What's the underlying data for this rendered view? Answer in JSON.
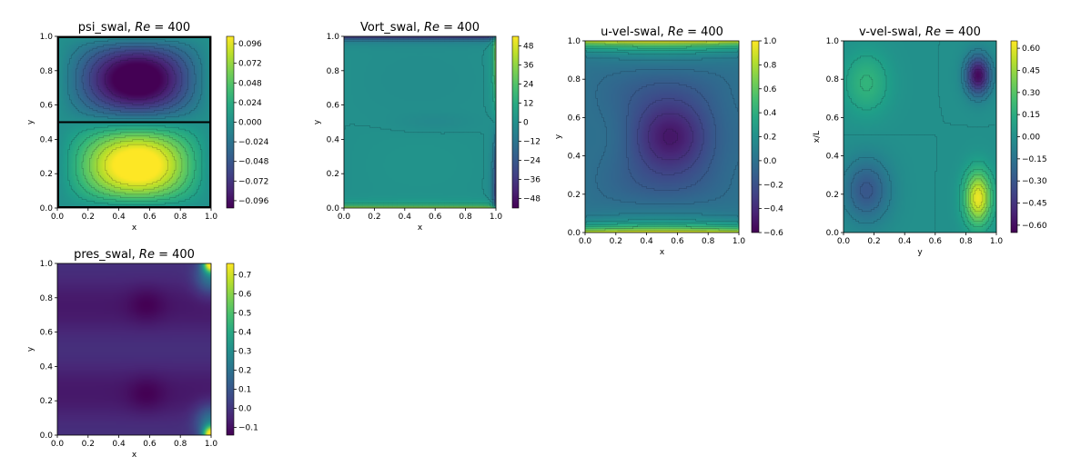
{
  "chart_data": [
    {
      "type": "heatmap",
      "id": "psi",
      "title": "psi_swal, Re = 400",
      "title_parts": [
        "psi_swal, ",
        "Re",
        " = 400"
      ],
      "xlabel": "x",
      "ylabel": "y",
      "xlim": [
        0,
        1
      ],
      "ylim": [
        0,
        1
      ],
      "xticks": [
        "0.0",
        "0.2",
        "0.4",
        "0.6",
        "0.8",
        "1.0"
      ],
      "yticks": [
        "0.0",
        "0.2",
        "0.4",
        "0.6",
        "0.8",
        "1.0"
      ],
      "colorbar": {
        "ticks": [
          "0.096",
          "0.072",
          "0.048",
          "0.024",
          "0.000",
          "−0.024",
          "−0.048",
          "−0.072",
          "−0.096"
        ],
        "range": [
          -0.105,
          0.105
        ]
      },
      "field": "psi",
      "lines": "dark"
    },
    {
      "type": "heatmap",
      "id": "vort",
      "title": "Vort_swal, Re = 400",
      "title_parts": [
        "Vort_swal, ",
        "Re",
        " = 400"
      ],
      "xlabel": "x",
      "ylabel": "y",
      "xlim": [
        0,
        1
      ],
      "ylim": [
        0,
        1
      ],
      "xticks": [
        "0.0",
        "0.2",
        "0.4",
        "0.6",
        "0.8",
        "1.0"
      ],
      "yticks": [
        "0.0",
        "0.2",
        "0.4",
        "0.6",
        "0.8",
        "1.0"
      ],
      "colorbar": {
        "ticks": [
          "48",
          "36",
          "24",
          "12",
          "0",
          "−12",
          "−24",
          "−36",
          "−48"
        ],
        "range": [
          -54,
          54
        ]
      },
      "field": "vort",
      "lines": "dark"
    },
    {
      "type": "heatmap",
      "id": "uvel",
      "title": "u-vel-swal, Re = 400",
      "title_parts": [
        "u-vel-swal, ",
        "Re",
        " = 400"
      ],
      "xlabel": "x",
      "ylabel": "y",
      "xlim": [
        0,
        1
      ],
      "ylim": [
        0,
        1
      ],
      "xticks": [
        "0.0",
        "0.2",
        "0.4",
        "0.6",
        "0.8",
        "1.0"
      ],
      "yticks": [
        "0.0",
        "0.2",
        "0.4",
        "0.6",
        "0.8",
        "1.0"
      ],
      "colorbar": {
        "ticks": [
          "1.0",
          "0.8",
          "0.6",
          "0.4",
          "0.2",
          "0.0",
          "−0.2",
          "−0.4",
          "−0.6"
        ],
        "range": [
          -0.6,
          1.0
        ]
      },
      "field": "uvel",
      "lines": "dark"
    },
    {
      "type": "heatmap",
      "id": "vvel",
      "title": "v-vel-swal, Re = 400",
      "title_parts": [
        "v-vel-swal, ",
        "Re",
        " = 400"
      ],
      "xlabel": "y",
      "ylabel": "x/L",
      "xlim": [
        0,
        1
      ],
      "ylim": [
        0,
        1
      ],
      "xticks": [
        "0.0",
        "0.2",
        "0.4",
        "0.6",
        "0.8",
        "1.0"
      ],
      "yticks": [
        "0.0",
        "0.2",
        "0.4",
        "0.6",
        "0.8",
        "1.0"
      ],
      "colorbar": {
        "ticks": [
          "0.60",
          "0.45",
          "0.30",
          "0.15",
          "0.00",
          "−0.15",
          "−0.30",
          "−0.45",
          "−0.60"
        ],
        "range": [
          -0.65,
          0.65
        ]
      },
      "field": "vvel",
      "lines": "dark"
    },
    {
      "type": "heatmap",
      "id": "pres",
      "title": "pres_swal, Re = 400",
      "title_parts": [
        "pres_swal, ",
        "Re",
        " = 400"
      ],
      "xlabel": "x",
      "ylabel": "y",
      "xlim": [
        0,
        1
      ],
      "ylim": [
        0,
        1
      ],
      "xticks": [
        "0.0",
        "0.2",
        "0.4",
        "0.6",
        "0.8",
        "1.0"
      ],
      "yticks": [
        "0.0",
        "0.2",
        "0.4",
        "0.6",
        "0.8",
        "1.0"
      ],
      "colorbar": {
        "ticks": [
          "0.7",
          "0.6",
          "0.5",
          "0.4",
          "0.3",
          "0.2",
          "0.1",
          "0.0",
          "−0.1"
        ],
        "range": [
          -0.14,
          0.76
        ]
      },
      "field": "pres",
      "lines": "none"
    }
  ],
  "colormap": "viridis"
}
